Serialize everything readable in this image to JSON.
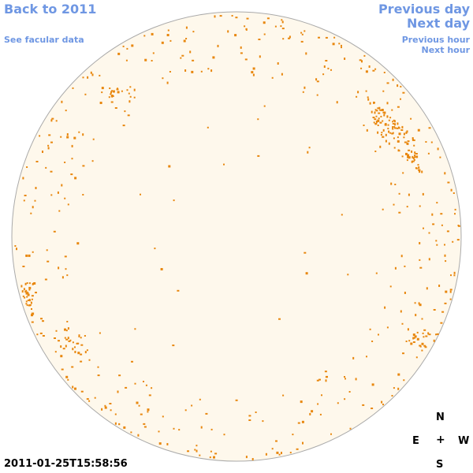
{
  "nav": {
    "back": "Back to 2011",
    "facular": "See facular data",
    "previous_day": "Previous day",
    "next_day": "Next day",
    "previous_hour": "Previous hour",
    "next_hour": "Next hour"
  },
  "timestamp": "2011-01-25T15:58:56",
  "compass": {
    "n": "N",
    "e": "E",
    "center": "+",
    "w": "W",
    "s": "S"
  },
  "colors": {
    "disk_fill": "#fef8ec",
    "disk_stroke": "#aaaaaa",
    "feature": "#e8870e",
    "link": "#6f97e3"
  }
}
